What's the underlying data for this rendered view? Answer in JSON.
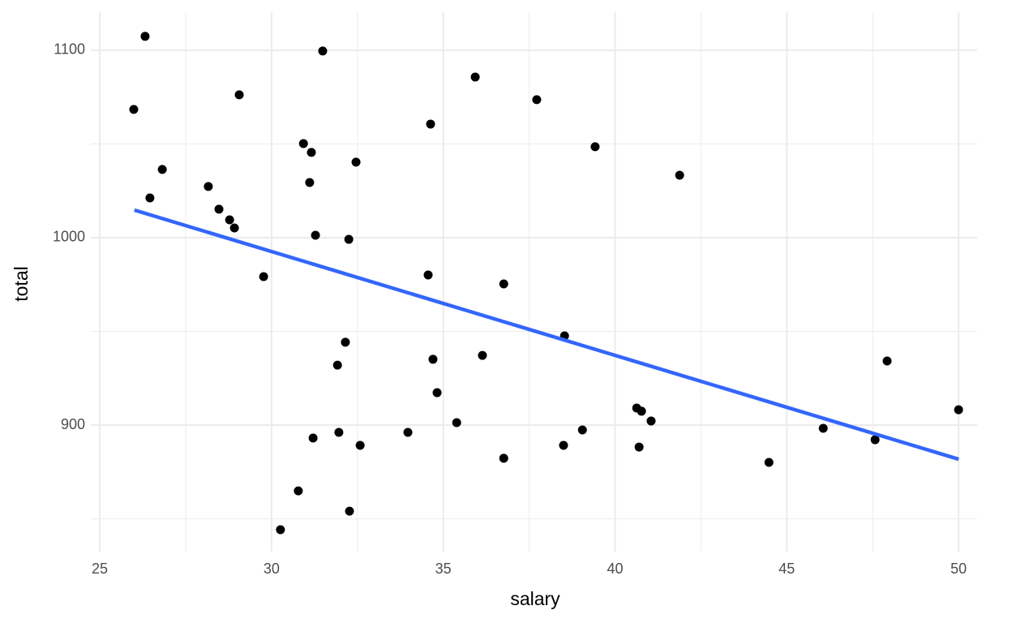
{
  "chart_data": {
    "type": "scatter",
    "x_label": "salary",
    "y_label": "total",
    "xlim": [
      24.74,
      50.54
    ],
    "ylim": [
      832.5,
      1120.3
    ],
    "xticks": [
      25,
      30,
      35,
      40,
      45,
      50
    ],
    "yticks": [
      900,
      1000,
      1100
    ],
    "x_minor_grid": [
      27.5,
      32.5,
      37.5,
      42.5,
      47.5
    ],
    "y_minor_grid": [
      850,
      950,
      1050
    ],
    "grid": true,
    "color": "#000000",
    "x": [
      25.99,
      26.32,
      26.46,
      26.82,
      28.16,
      28.47,
      28.78,
      28.92,
      29.06,
      29.77,
      30.26,
      30.78,
      30.93,
      31.11,
      31.16,
      31.21,
      31.28,
      31.49,
      31.92,
      31.96,
      32.15,
      32.25,
      32.27,
      32.46,
      32.58,
      33.97,
      34.56,
      34.63,
      34.7,
      34.82,
      35.39,
      35.93,
      36.14,
      36.76,
      36.76,
      37.72,
      38.5,
      38.53,
      39.05,
      39.42,
      40.63,
      40.7,
      40.77,
      41.05,
      41.88,
      44.48,
      46.06,
      47.57,
      47.92,
      50.0
    ],
    "values": [
      1068.4,
      1107.4,
      1021.2,
      1036.4,
      1027.3,
      1015.2,
      1009.5,
      1005.2,
      1076.2,
      979.2,
      844.2,
      864.9,
      1050.2,
      1029.4,
      1045.5,
      893.1,
      1001.3,
      1099.6,
      932.0,
      896.1,
      944.2,
      999.1,
      854.1,
      1040.3,
      889.2,
      896.1,
      980.1,
      1060.6,
      935.1,
      917.3,
      901.3,
      1085.7,
      937.2,
      975.3,
      882.3,
      1073.6,
      889.2,
      947.6,
      897.4,
      1048.5,
      909.1,
      888.3,
      907.4,
      902.2,
      1033.3,
      880.1,
      898.3,
      892.2,
      934.2,
      908.2
    ],
    "trend_line": {
      "x": [
        26.01,
        50.0
      ],
      "y": [
        1014.7,
        881.8
      ],
      "color": "#3366ff"
    }
  }
}
